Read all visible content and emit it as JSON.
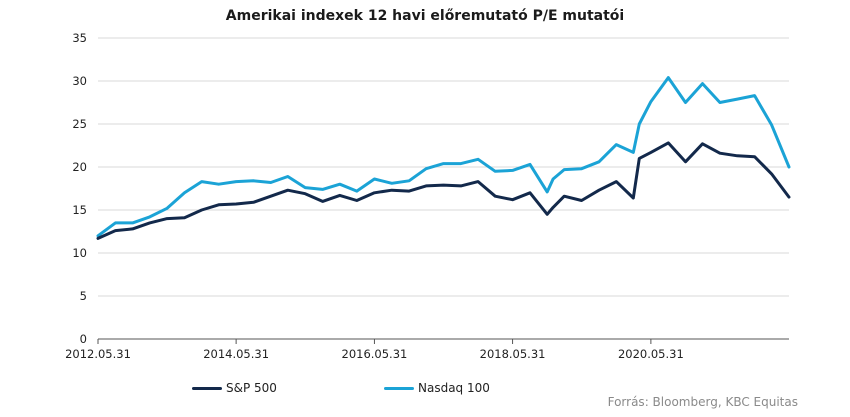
{
  "chart_data": {
    "type": "line",
    "title": "Amerikai indexek 12 havi előremutató P/E mutatói",
    "xlabel": "",
    "ylabel": "",
    "ylim": [
      0,
      35
    ],
    "yticks": [
      0,
      5,
      10,
      15,
      20,
      25,
      30,
      35
    ],
    "xlim": [
      "2012.05.31",
      "2022.05.31"
    ],
    "xtick_labels": [
      "2012.05.31",
      "2014.05.31",
      "2016.05.31",
      "2018.05.31",
      "2020.05.31"
    ],
    "grid": "horizontal",
    "legend": "bottom-left",
    "series": [
      {
        "name": "S&P 500",
        "color": "#13294b",
        "x": [
          "2012.05.31",
          "2012.08.31",
          "2012.11.30",
          "2013.02.28",
          "2013.05.31",
          "2013.08.31",
          "2013.11.30",
          "2014.02.28",
          "2014.05.31",
          "2014.08.31",
          "2014.11.30",
          "2015.02.28",
          "2015.05.31",
          "2015.08.31",
          "2015.11.30",
          "2016.02.28",
          "2016.05.31",
          "2016.08.31",
          "2016.11.30",
          "2017.02.28",
          "2017.05.31",
          "2017.08.31",
          "2017.11.30",
          "2018.02.28",
          "2018.05.31",
          "2018.08.31",
          "2018.11.30",
          "2018.12.31",
          "2019.02.28",
          "2019.05.31",
          "2019.08.31",
          "2019.11.30",
          "2020.02.28",
          "2020.03.31",
          "2020.05.31",
          "2020.08.31",
          "2020.11.30",
          "2021.02.28",
          "2021.05.31",
          "2021.08.31",
          "2021.11.30",
          "2022.02.28",
          "2022.05.31"
        ],
        "values": [
          11.7,
          12.6,
          12.8,
          13.5,
          14.0,
          14.1,
          15.0,
          15.6,
          15.7,
          15.9,
          16.6,
          17.3,
          16.9,
          16.0,
          16.7,
          16.1,
          17.0,
          17.3,
          17.2,
          17.8,
          17.9,
          17.8,
          18.3,
          16.6,
          16.2,
          17.0,
          14.5,
          15.3,
          16.6,
          16.1,
          17.3,
          18.3,
          16.4,
          21.0,
          21.7,
          22.8,
          20.6,
          22.7,
          21.6,
          21.3,
          21.2,
          19.2,
          16.5
        ]
      },
      {
        "name": "Nasdaq 100",
        "color": "#1ba3d6",
        "x": [
          "2012.05.31",
          "2012.08.31",
          "2012.11.30",
          "2013.02.28",
          "2013.05.31",
          "2013.08.31",
          "2013.11.30",
          "2014.02.28",
          "2014.05.31",
          "2014.08.31",
          "2014.11.30",
          "2015.02.28",
          "2015.05.31",
          "2015.08.31",
          "2015.11.30",
          "2016.02.28",
          "2016.05.31",
          "2016.08.31",
          "2016.11.30",
          "2017.02.28",
          "2017.05.31",
          "2017.08.31",
          "2017.11.30",
          "2018.02.28",
          "2018.05.31",
          "2018.08.31",
          "2018.11.30",
          "2018.12.31",
          "2019.02.28",
          "2019.05.31",
          "2019.08.31",
          "2019.11.30",
          "2020.02.28",
          "2020.03.31",
          "2020.05.31",
          "2020.08.31",
          "2020.11.30",
          "2021.02.28",
          "2021.05.31",
          "2021.08.31",
          "2021.11.30",
          "2022.02.28",
          "2022.05.31"
        ],
        "values": [
          12.0,
          13.5,
          13.5,
          14.2,
          15.2,
          17.0,
          18.3,
          18.0,
          18.3,
          18.4,
          18.2,
          18.9,
          17.6,
          17.4,
          18.0,
          17.2,
          18.6,
          18.1,
          18.4,
          19.8,
          20.4,
          20.4,
          20.9,
          19.5,
          19.6,
          20.3,
          17.1,
          18.6,
          19.7,
          19.8,
          20.6,
          22.6,
          21.7,
          25.0,
          27.6,
          30.4,
          27.5,
          29.7,
          27.5,
          27.9,
          28.3,
          24.9,
          20.0
        ]
      }
    ],
    "source": "Forrás: Bloomberg, KBC Equitas"
  }
}
